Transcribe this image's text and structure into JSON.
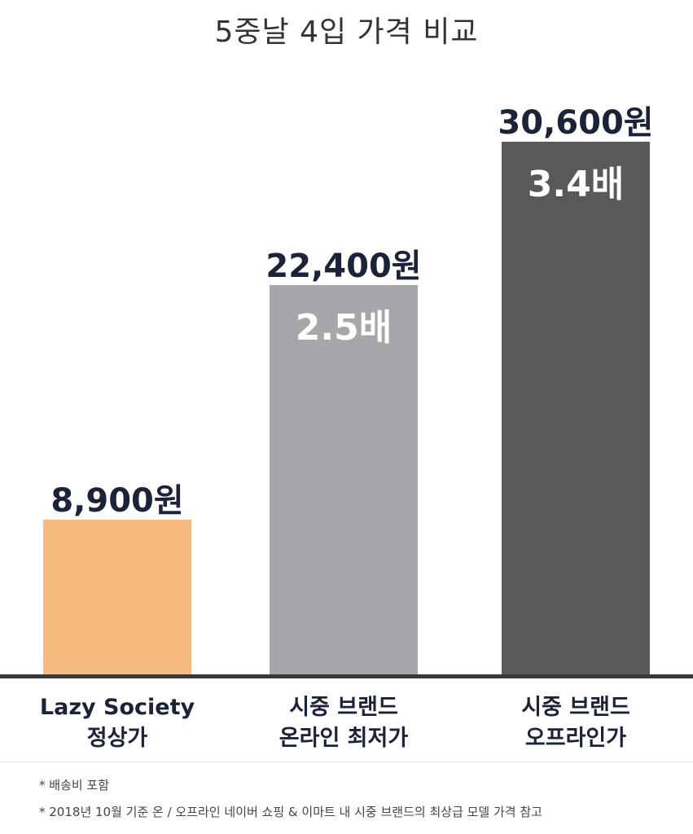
{
  "chart_data": {
    "type": "bar",
    "title": "5중날 4입 가격 비교",
    "categories": [
      [
        "Lazy Society",
        "정상가"
      ],
      [
        "시중 브랜드",
        "온라인 최저가"
      ],
      [
        "시중 브랜드",
        "오프라인가"
      ]
    ],
    "values": [
      8900,
      22400,
      30600
    ],
    "value_labels": [
      "8,900원",
      "22,400원",
      "30,600원"
    ],
    "ratio_labels": [
      "",
      "2.5배",
      "3.4배"
    ],
    "colors": [
      "#f6b97f",
      "#a6a7ab",
      "#58595b"
    ],
    "ylim": [
      0,
      34000
    ],
    "grid": false,
    "legend": "none"
  },
  "notes": [
    "* 배송비 포함",
    "* 2018년 10월 기준 온 / 오프라인 네이버 쇼핑 & 이마트 내 시중 브랜드의 최상급 모델 가격 참고"
  ]
}
